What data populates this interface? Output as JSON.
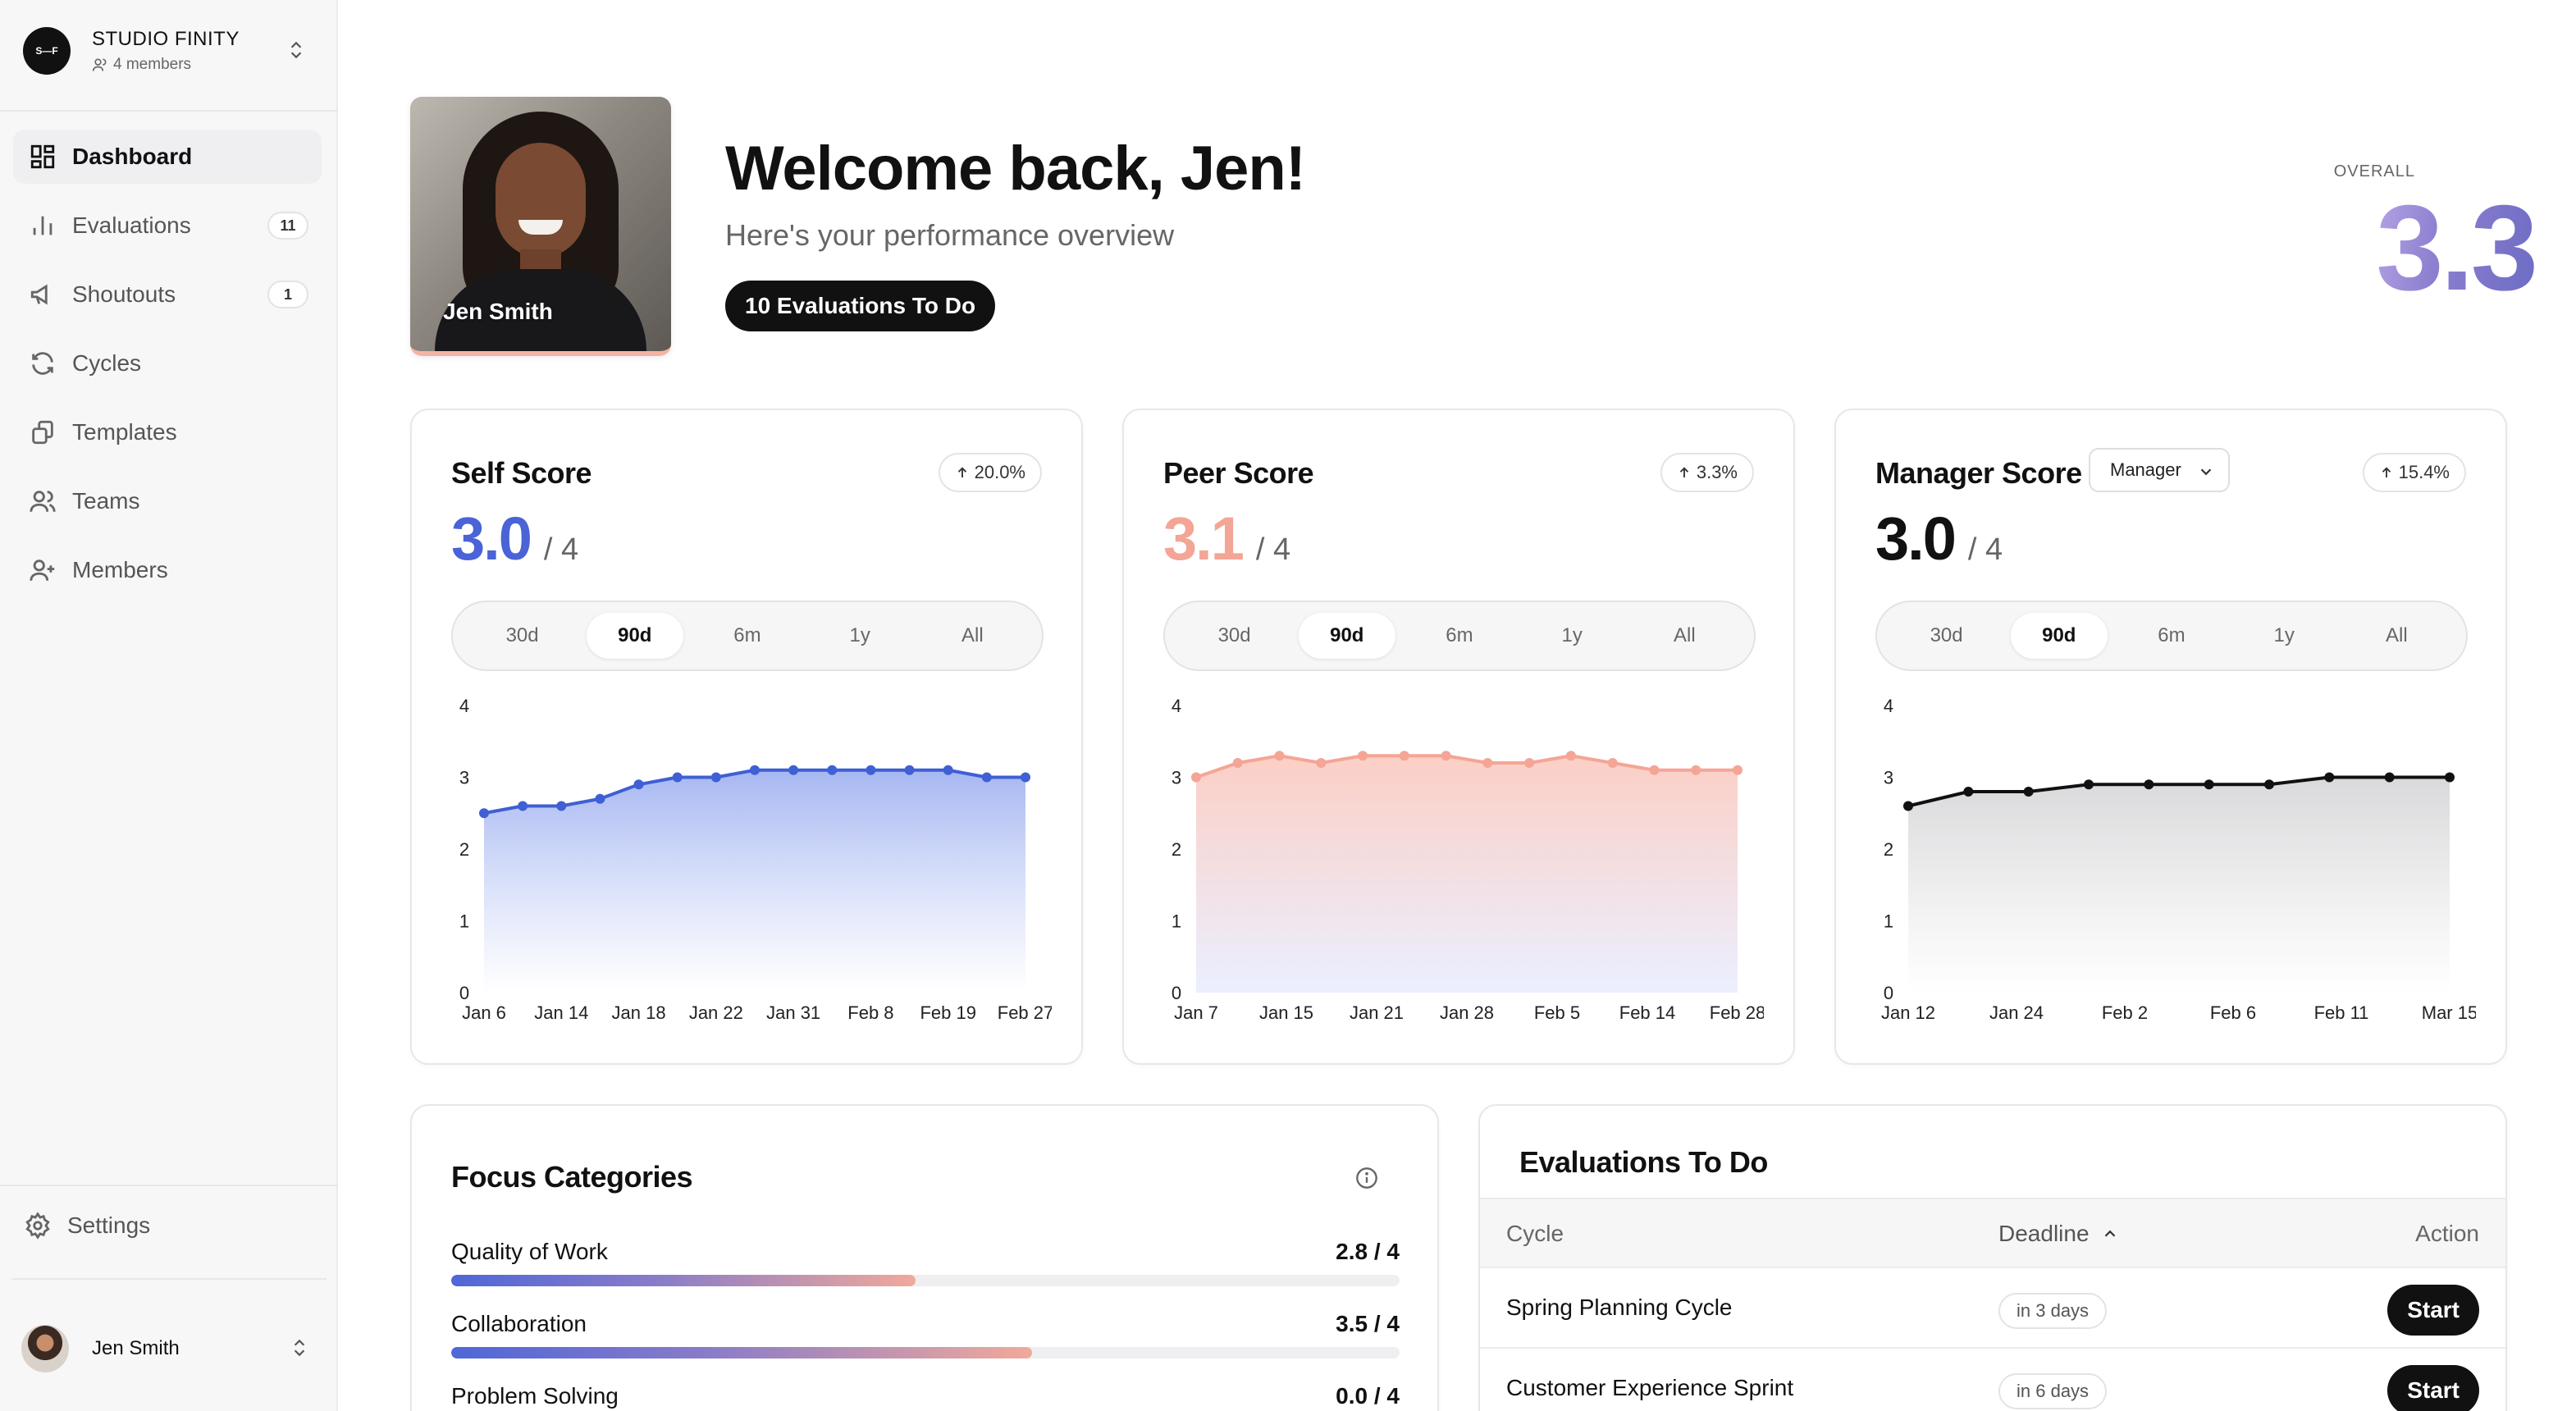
{
  "sidebar": {
    "org": {
      "logo_text": "S—F",
      "name": "STUDIO FINITY",
      "members": "4 members"
    },
    "items": [
      {
        "label": "Dashboard",
        "icon": "dashboard-icon",
        "active": true
      },
      {
        "label": "Evaluations",
        "icon": "bar-chart-icon",
        "badge": "11"
      },
      {
        "label": "Shoutouts",
        "icon": "megaphone-icon",
        "badge": "1"
      },
      {
        "label": "Cycles",
        "icon": "refresh-icon"
      },
      {
        "label": "Templates",
        "icon": "copy-icon"
      },
      {
        "label": "Teams",
        "icon": "users-icon"
      },
      {
        "label": "Members",
        "icon": "user-plus-icon"
      }
    ],
    "settings_label": "Settings",
    "user_name": "Jen Smith"
  },
  "header": {
    "photo_name": "Jen Smith",
    "welcome": "Welcome back, Jen!",
    "subtitle": "Here's your performance overview",
    "todo_pill": "10 Evaluations To Do",
    "overall_label": "OVERALL",
    "overall_value": "3.3"
  },
  "ranges": [
    "30d",
    "90d",
    "6m",
    "1y",
    "All"
  ],
  "active_range": "90d",
  "cards": {
    "self": {
      "title": "Self Score",
      "change": "20.0%",
      "score": "3.0",
      "max": "/ 4",
      "color": "#4a63d6"
    },
    "peer": {
      "title": "Peer Score",
      "change": "3.3%",
      "score": "3.1",
      "max": "/ 4",
      "color": "#f3a596"
    },
    "manager": {
      "title": "Manager Score",
      "change": "15.4%",
      "score": "3.0",
      "max": "/ 4",
      "color": "#111111",
      "select_value": "Manager"
    }
  },
  "chart_data": [
    {
      "type": "area",
      "title": "Self Score",
      "ylim": [
        0,
        4
      ],
      "y_ticks": [
        "0",
        "1",
        "2",
        "3",
        "4"
      ],
      "x_tick_labels": [
        "Jan 6",
        "Jan 14",
        "Jan 18",
        "Jan 22",
        "Jan 31",
        "Feb 8",
        "Feb 19",
        "Feb 27"
      ],
      "values": [
        2.5,
        2.6,
        2.6,
        2.7,
        2.9,
        3.0,
        3.0,
        3.1,
        3.1,
        3.1,
        3.1,
        3.1,
        3.1,
        3.0,
        3.0
      ],
      "color": "#3f5fd4"
    },
    {
      "type": "area",
      "title": "Peer Score",
      "ylim": [
        0,
        4
      ],
      "y_ticks": [
        "0",
        "1",
        "2",
        "3",
        "4"
      ],
      "x_tick_labels": [
        "Jan 7",
        "Jan 15",
        "Jan 21",
        "Jan 28",
        "Feb 5",
        "Feb 14",
        "Feb 28"
      ],
      "values": [
        3.0,
        3.2,
        3.3,
        3.2,
        3.3,
        3.3,
        3.3,
        3.2,
        3.2,
        3.3,
        3.2,
        3.1,
        3.1,
        3.1
      ],
      "color": "#f4a596"
    },
    {
      "type": "area",
      "title": "Manager Score",
      "ylim": [
        0,
        4
      ],
      "y_ticks": [
        "0",
        "1",
        "2",
        "3",
        "4"
      ],
      "x_tick_labels": [
        "Jan 12",
        "Jan 24",
        "Feb 2",
        "Feb 6",
        "Feb 11",
        "Mar 15"
      ],
      "values": [
        2.6,
        2.8,
        2.8,
        2.9,
        2.9,
        2.9,
        2.9,
        3.0,
        3.0,
        3.0
      ],
      "color": "#111111"
    }
  ],
  "focus": {
    "title": "Focus Categories",
    "items": [
      {
        "name": "Quality of Work",
        "score": "2.8 / 4",
        "value": 2.8
      },
      {
        "name": "Collaboration",
        "score": "3.5 / 4",
        "value": 3.5
      },
      {
        "name": "Problem Solving",
        "score": "0.0 / 4",
        "value": 0.0
      }
    ]
  },
  "evaluations": {
    "title": "Evaluations To Do",
    "headers": {
      "cycle": "Cycle",
      "deadline": "Deadline",
      "action": "Action"
    },
    "rows": [
      {
        "cycle": "Spring Planning Cycle",
        "deadline": "in 3 days",
        "action": "Start"
      },
      {
        "cycle": "Customer Experience Sprint",
        "deadline": "in 6 days",
        "action": "Start"
      }
    ]
  }
}
